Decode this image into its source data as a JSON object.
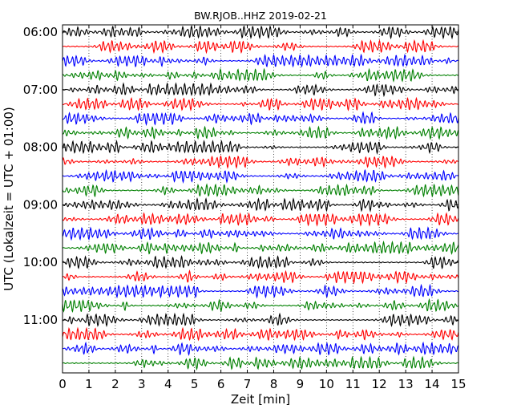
{
  "chart_data": {
    "type": "line",
    "title": "BW.RJOB..HHZ 2019-02-21",
    "xlabel": "Zeit  [min]",
    "ylabel": "UTC (Lokalzeit = UTC + 01:00)",
    "xlim": [
      0,
      15
    ],
    "x_ticks": [
      "0",
      "1",
      "2",
      "3",
      "4",
      "5",
      "6",
      "7",
      "8",
      "9",
      "10",
      "11",
      "12",
      "13",
      "14",
      "15"
    ],
    "y_ticks": [
      "06:00",
      "07:00",
      "08:00",
      "09:00",
      "10:00",
      "11:00"
    ],
    "grid": "vertical dotted",
    "trace_interval_minutes": 15,
    "trace_count": 24,
    "colors": [
      "#000000",
      "#ff0000",
      "#0000ff",
      "#008000"
    ]
  }
}
